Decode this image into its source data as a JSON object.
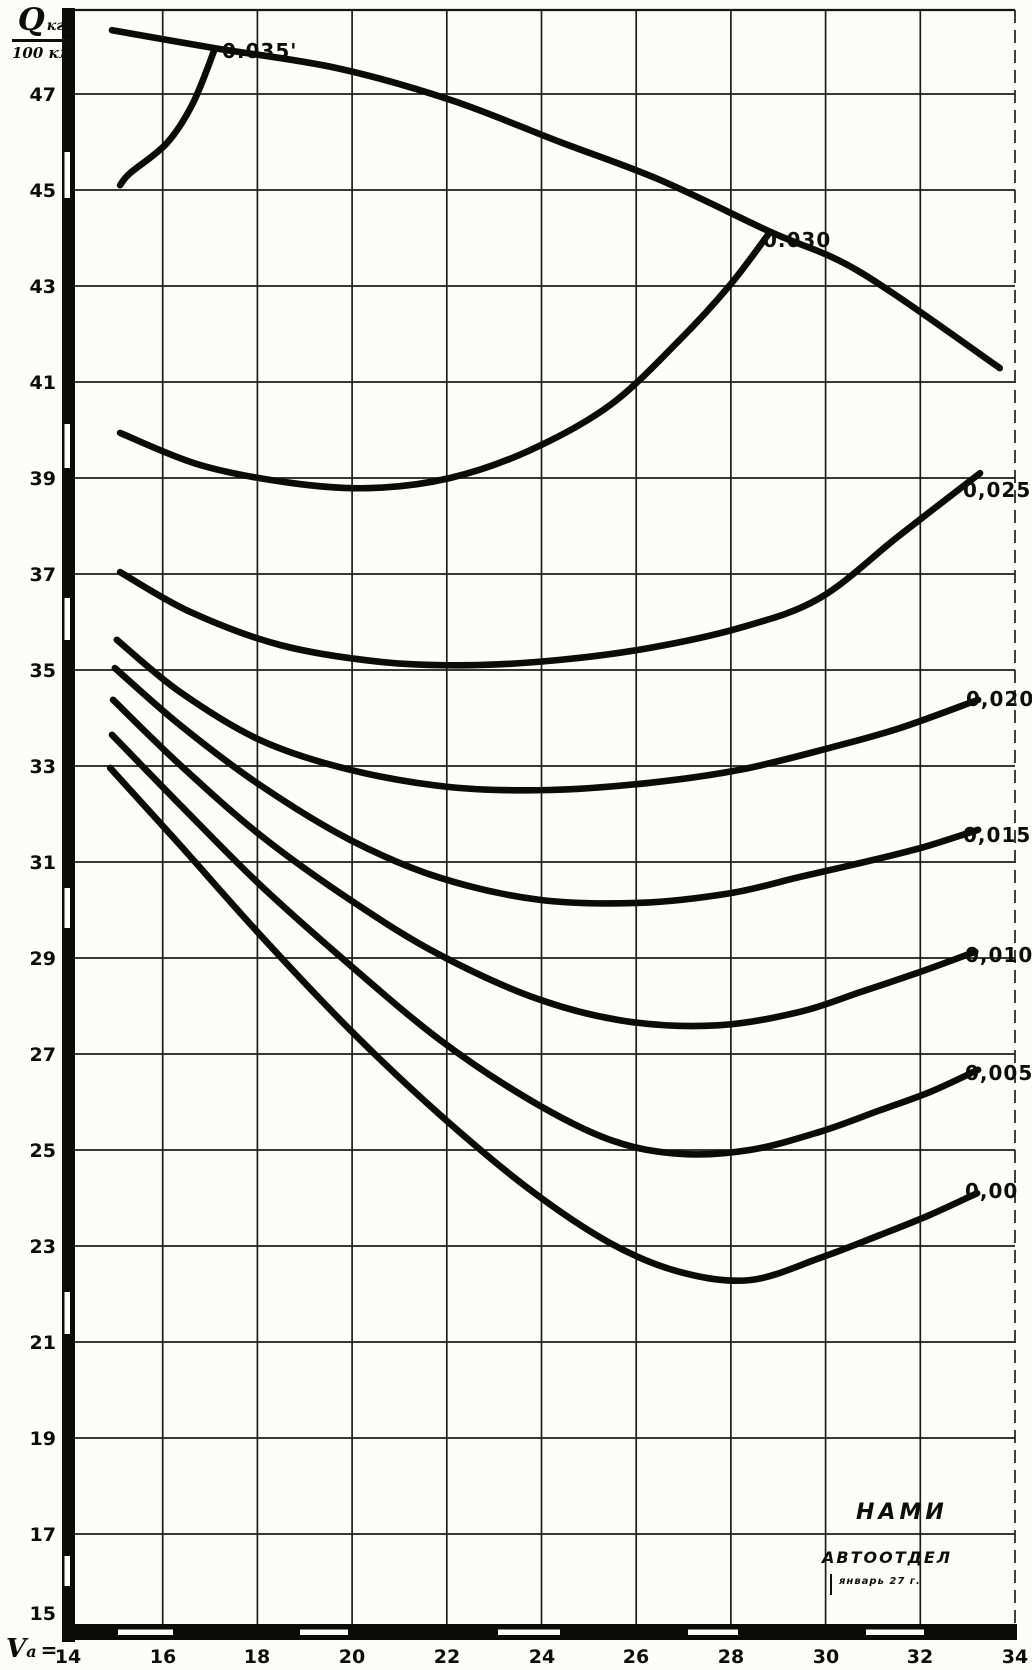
{
  "figure": {
    "y_axis_title": {
      "symbol": "Q",
      "unit": "кг",
      "denominator": "100 км"
    },
    "x_axis_title": {
      "symbol": "V",
      "subscript": "a",
      "equals": "="
    },
    "stamp": {
      "organization": "НАМИ",
      "department": "АВТООТДЕЛ",
      "date_note": "январь 27 г."
    }
  },
  "chart_data": {
    "type": "line",
    "title": "",
    "xlabel": "Va",
    "ylabel": "Q кг / 100 км",
    "xlim": [
      14,
      34
    ],
    "ylim": [
      15,
      49
    ],
    "grid": true,
    "legend_position": "labels-on-curves",
    "x_ticks": [
      14,
      16,
      18,
      20,
      22,
      24,
      26,
      28,
      30,
      32,
      34
    ],
    "y_ticks": [
      47,
      45,
      43,
      41,
      39,
      37,
      35,
      33,
      31,
      29,
      27,
      25,
      23,
      21,
      19,
      17,
      15
    ],
    "series": [
      {
        "name": "power-limit-envelope",
        "label": null,
        "label_at": null,
        "x": [
          14.93,
          17.06,
          19.68,
          22.07,
          24.39,
          26.5,
          28.83,
          30.73,
          33.68
        ],
        "y": [
          48.33,
          47.96,
          47.54,
          46.88,
          46.0,
          45.21,
          44.13,
          43.29,
          41.29
        ]
      },
      {
        "name": "f-0.035",
        "label": "0.035'",
        "label_at": [
          17.25,
          47.75
        ],
        "x": [
          15.1,
          15.31,
          16.09,
          16.64,
          17.1
        ],
        "y": [
          45.1,
          45.35,
          45.98,
          46.81,
          47.94
        ]
      },
      {
        "name": "f-0.030",
        "label": "0.030",
        "label_at": [
          28.68,
          43.81
        ],
        "x": [
          15.1,
          16.79,
          18.69,
          20.38,
          22.07,
          23.76,
          25.45,
          26.92,
          27.98,
          28.83
        ],
        "y": [
          39.94,
          39.27,
          38.9,
          38.79,
          39.0,
          39.58,
          40.52,
          41.88,
          43.02,
          44.13
        ]
      },
      {
        "name": "f-0.025",
        "label": "0,025",
        "label_at": [
          32.9,
          38.6
        ],
        "x": [
          15.1,
          16.58,
          18.48,
          20.59,
          22.49,
          24.39,
          26.29,
          28.19,
          29.88,
          31.57,
          33.26
        ],
        "y": [
          37.04,
          36.21,
          35.52,
          35.17,
          35.1,
          35.21,
          35.46,
          35.88,
          36.5,
          37.81,
          39.1
        ]
      },
      {
        "name": "f-0.020",
        "label": "0,020",
        "label_at": [
          32.97,
          34.25
        ],
        "x": [
          15.03,
          16.37,
          18.06,
          19.96,
          22.07,
          24.18,
          26.29,
          28.19,
          30.09,
          31.57,
          33.22
        ],
        "y": [
          35.63,
          34.54,
          33.54,
          32.92,
          32.56,
          32.5,
          32.65,
          32.92,
          33.38,
          33.79,
          34.38
        ]
      },
      {
        "name": "f-0.015",
        "label": "0,015",
        "label_at": [
          32.9,
          31.42
        ],
        "x": [
          14.99,
          16.37,
          18.06,
          19.96,
          21.86,
          23.97,
          26.08,
          27.98,
          29.46,
          30.73,
          32.0,
          33.22
        ],
        "y": [
          35.04,
          33.85,
          32.6,
          31.46,
          30.67,
          30.21,
          30.15,
          30.35,
          30.69,
          30.98,
          31.29,
          31.67
        ]
      },
      {
        "name": "f-0.010",
        "label": "0,010",
        "label_at": [
          32.94,
          28.92
        ],
        "x": [
          14.95,
          16.37,
          18.06,
          19.96,
          21.86,
          23.97,
          25.87,
          27.77,
          29.46,
          30.73,
          32.0,
          33.16
        ],
        "y": [
          34.38,
          33.02,
          31.56,
          30.21,
          29.06,
          28.13,
          27.67,
          27.6,
          27.88,
          28.29,
          28.71,
          29.13
        ]
      },
      {
        "name": "f-0.005",
        "label": "0,005",
        "label_at": [
          32.94,
          26.46
        ],
        "x": [
          14.93,
          16.37,
          18.06,
          19.96,
          21.86,
          23.76,
          25.45,
          26.92,
          28.4,
          29.88,
          31.15,
          32.21,
          33.22
        ],
        "y": [
          33.65,
          32.19,
          30.52,
          28.85,
          27.29,
          26.04,
          25.21,
          24.92,
          25.0,
          25.38,
          25.83,
          26.21,
          26.67
        ]
      },
      {
        "name": "f-0.00",
        "label": "0,00",
        "label_at": [
          32.94,
          24.0
        ],
        "x": [
          14.89,
          16.37,
          18.06,
          19.96,
          21.86,
          23.76,
          25.45,
          26.92,
          28.4,
          29.88,
          31.15,
          32.21,
          33.2
        ],
        "y": [
          32.96,
          31.35,
          29.48,
          27.5,
          25.73,
          24.17,
          23.06,
          22.46,
          22.29,
          22.75,
          23.23,
          23.65,
          24.1
        ]
      }
    ]
  }
}
